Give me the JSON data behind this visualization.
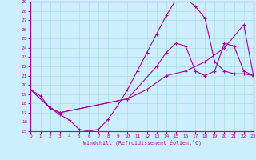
{
  "xlabel": "Windchill (Refroidissement éolien,°C)",
  "bg_color": "#cceeff",
  "line_color": "#aa00aa",
  "grid_color": "#aadddd",
  "xlim": [
    0,
    23
  ],
  "ylim": [
    15,
    29
  ],
  "xticks": [
    0,
    1,
    2,
    3,
    4,
    5,
    6,
    7,
    8,
    9,
    10,
    11,
    12,
    13,
    14,
    15,
    16,
    17,
    18,
    19,
    20,
    21,
    22,
    23
  ],
  "yticks": [
    15,
    16,
    17,
    18,
    19,
    20,
    21,
    22,
    23,
    24,
    25,
    26,
    27,
    28,
    29
  ],
  "curve1_x": [
    0,
    1,
    2,
    3,
    4,
    5,
    6,
    7,
    8,
    9,
    10,
    11,
    12,
    13,
    14,
    15,
    16,
    17,
    18,
    19,
    20,
    21,
    22,
    23
  ],
  "curve1_y": [
    19.5,
    18.8,
    17.5,
    16.8,
    16.2,
    15.2,
    15.0,
    15.2,
    16.3,
    17.8,
    19.5,
    21.5,
    23.5,
    25.5,
    27.5,
    29.2,
    29.3,
    28.5,
    27.2,
    22.5,
    21.5,
    21.2,
    21.2,
    21.0
  ],
  "curve2_x": [
    0,
    2,
    3,
    10,
    13,
    14,
    15,
    16,
    17,
    18,
    19,
    20,
    21,
    22,
    23
  ],
  "curve2_y": [
    19.5,
    17.5,
    17.0,
    18.5,
    22.0,
    23.5,
    24.5,
    24.2,
    21.5,
    21.0,
    21.5,
    24.5,
    24.2,
    21.5,
    21.0
  ],
  "curve3_x": [
    0,
    2,
    3,
    10,
    12,
    14,
    16,
    18,
    20,
    22,
    23
  ],
  "curve3_y": [
    19.5,
    17.5,
    17.0,
    18.5,
    19.5,
    21.0,
    21.5,
    22.5,
    24.0,
    26.5,
    21.0
  ]
}
